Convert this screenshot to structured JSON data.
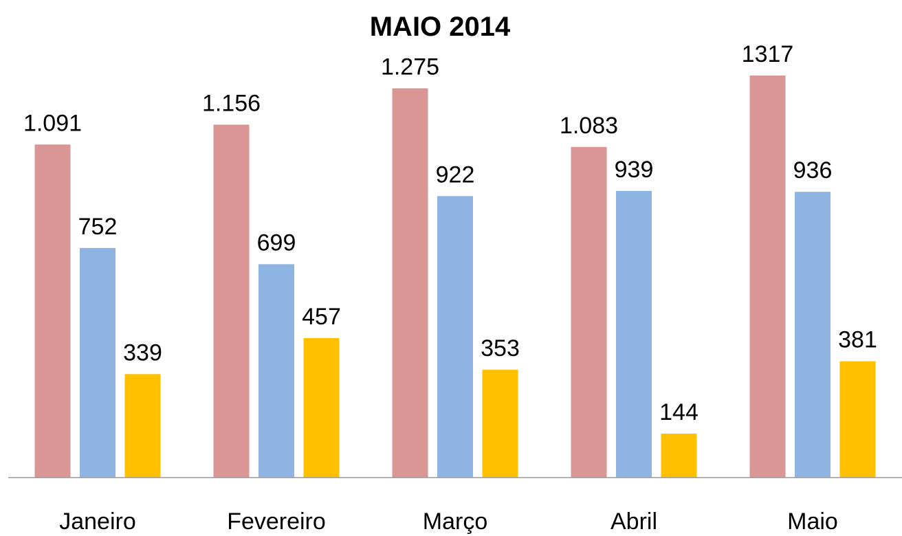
{
  "chart_data": {
    "type": "bar",
    "title": "MAIO 2014",
    "categories": [
      "Janeiro",
      "Fevereiro",
      "Março",
      "Abril",
      "Maio"
    ],
    "series": [
      {
        "color": "#d99694",
        "values": [
          1091,
          1156,
          1275,
          1083,
          1317
        ],
        "value_labels": [
          "1.091",
          "1.156",
          "1.275",
          "1.083",
          "1317"
        ]
      },
      {
        "color": "#8eb4e3",
        "values": [
          752,
          699,
          922,
          939,
          936
        ]
      },
      {
        "color": "#ffc000",
        "values": [
          339,
          457,
          353,
          144,
          381
        ]
      }
    ],
    "ylim": [
      0,
      1400
    ]
  }
}
